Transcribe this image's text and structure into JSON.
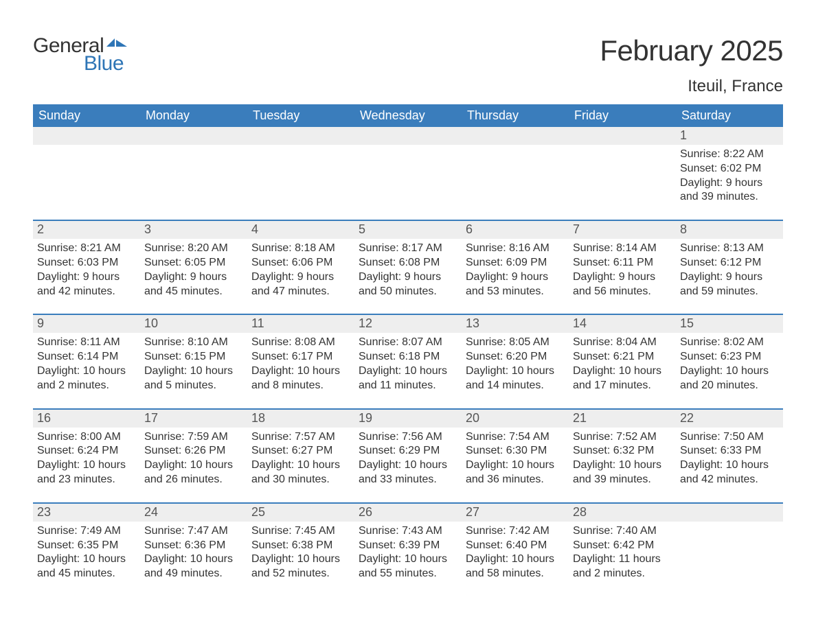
{
  "logo": {
    "general": "General",
    "blue": "Blue",
    "shape_color": "#2e75b6"
  },
  "title": "February 2025",
  "location": "Iteuil, France",
  "colors": {
    "header_bg": "#3a7dbc",
    "header_text": "#ffffff",
    "day_bar_bg": "#eeeeee",
    "week_border": "#3a7dbc",
    "text": "#333333",
    "logo_blue": "#2e75b6",
    "background": "#ffffff"
  },
  "typography": {
    "title_fontsize": 42,
    "location_fontsize": 24,
    "header_fontsize": 18,
    "daynum_fontsize": 18,
    "body_fontsize": 16,
    "logo_fontsize": 30
  },
  "layout": {
    "columns": 7,
    "rows": 5,
    "week_start": "Sunday"
  },
  "weekdays": [
    "Sunday",
    "Monday",
    "Tuesday",
    "Wednesday",
    "Thursday",
    "Friday",
    "Saturday"
  ],
  "weeks": [
    [
      {
        "day": "",
        "sunrise": "",
        "sunset": "",
        "daylight": ""
      },
      {
        "day": "",
        "sunrise": "",
        "sunset": "",
        "daylight": ""
      },
      {
        "day": "",
        "sunrise": "",
        "sunset": "",
        "daylight": ""
      },
      {
        "day": "",
        "sunrise": "",
        "sunset": "",
        "daylight": ""
      },
      {
        "day": "",
        "sunrise": "",
        "sunset": "",
        "daylight": ""
      },
      {
        "day": "",
        "sunrise": "",
        "sunset": "",
        "daylight": ""
      },
      {
        "day": "1",
        "sunrise": "Sunrise: 8:22 AM",
        "sunset": "Sunset: 6:02 PM",
        "daylight": "Daylight: 9 hours and 39 minutes."
      }
    ],
    [
      {
        "day": "2",
        "sunrise": "Sunrise: 8:21 AM",
        "sunset": "Sunset: 6:03 PM",
        "daylight": "Daylight: 9 hours and 42 minutes."
      },
      {
        "day": "3",
        "sunrise": "Sunrise: 8:20 AM",
        "sunset": "Sunset: 6:05 PM",
        "daylight": "Daylight: 9 hours and 45 minutes."
      },
      {
        "day": "4",
        "sunrise": "Sunrise: 8:18 AM",
        "sunset": "Sunset: 6:06 PM",
        "daylight": "Daylight: 9 hours and 47 minutes."
      },
      {
        "day": "5",
        "sunrise": "Sunrise: 8:17 AM",
        "sunset": "Sunset: 6:08 PM",
        "daylight": "Daylight: 9 hours and 50 minutes."
      },
      {
        "day": "6",
        "sunrise": "Sunrise: 8:16 AM",
        "sunset": "Sunset: 6:09 PM",
        "daylight": "Daylight: 9 hours and 53 minutes."
      },
      {
        "day": "7",
        "sunrise": "Sunrise: 8:14 AM",
        "sunset": "Sunset: 6:11 PM",
        "daylight": "Daylight: 9 hours and 56 minutes."
      },
      {
        "day": "8",
        "sunrise": "Sunrise: 8:13 AM",
        "sunset": "Sunset: 6:12 PM",
        "daylight": "Daylight: 9 hours and 59 minutes."
      }
    ],
    [
      {
        "day": "9",
        "sunrise": "Sunrise: 8:11 AM",
        "sunset": "Sunset: 6:14 PM",
        "daylight": "Daylight: 10 hours and 2 minutes."
      },
      {
        "day": "10",
        "sunrise": "Sunrise: 8:10 AM",
        "sunset": "Sunset: 6:15 PM",
        "daylight": "Daylight: 10 hours and 5 minutes."
      },
      {
        "day": "11",
        "sunrise": "Sunrise: 8:08 AM",
        "sunset": "Sunset: 6:17 PM",
        "daylight": "Daylight: 10 hours and 8 minutes."
      },
      {
        "day": "12",
        "sunrise": "Sunrise: 8:07 AM",
        "sunset": "Sunset: 6:18 PM",
        "daylight": "Daylight: 10 hours and 11 minutes."
      },
      {
        "day": "13",
        "sunrise": "Sunrise: 8:05 AM",
        "sunset": "Sunset: 6:20 PM",
        "daylight": "Daylight: 10 hours and 14 minutes."
      },
      {
        "day": "14",
        "sunrise": "Sunrise: 8:04 AM",
        "sunset": "Sunset: 6:21 PM",
        "daylight": "Daylight: 10 hours and 17 minutes."
      },
      {
        "day": "15",
        "sunrise": "Sunrise: 8:02 AM",
        "sunset": "Sunset: 6:23 PM",
        "daylight": "Daylight: 10 hours and 20 minutes."
      }
    ],
    [
      {
        "day": "16",
        "sunrise": "Sunrise: 8:00 AM",
        "sunset": "Sunset: 6:24 PM",
        "daylight": "Daylight: 10 hours and 23 minutes."
      },
      {
        "day": "17",
        "sunrise": "Sunrise: 7:59 AM",
        "sunset": "Sunset: 6:26 PM",
        "daylight": "Daylight: 10 hours and 26 minutes."
      },
      {
        "day": "18",
        "sunrise": "Sunrise: 7:57 AM",
        "sunset": "Sunset: 6:27 PM",
        "daylight": "Daylight: 10 hours and 30 minutes."
      },
      {
        "day": "19",
        "sunrise": "Sunrise: 7:56 AM",
        "sunset": "Sunset: 6:29 PM",
        "daylight": "Daylight: 10 hours and 33 minutes."
      },
      {
        "day": "20",
        "sunrise": "Sunrise: 7:54 AM",
        "sunset": "Sunset: 6:30 PM",
        "daylight": "Daylight: 10 hours and 36 minutes."
      },
      {
        "day": "21",
        "sunrise": "Sunrise: 7:52 AM",
        "sunset": "Sunset: 6:32 PM",
        "daylight": "Daylight: 10 hours and 39 minutes."
      },
      {
        "day": "22",
        "sunrise": "Sunrise: 7:50 AM",
        "sunset": "Sunset: 6:33 PM",
        "daylight": "Daylight: 10 hours and 42 minutes."
      }
    ],
    [
      {
        "day": "23",
        "sunrise": "Sunrise: 7:49 AM",
        "sunset": "Sunset: 6:35 PM",
        "daylight": "Daylight: 10 hours and 45 minutes."
      },
      {
        "day": "24",
        "sunrise": "Sunrise: 7:47 AM",
        "sunset": "Sunset: 6:36 PM",
        "daylight": "Daylight: 10 hours and 49 minutes."
      },
      {
        "day": "25",
        "sunrise": "Sunrise: 7:45 AM",
        "sunset": "Sunset: 6:38 PM",
        "daylight": "Daylight: 10 hours and 52 minutes."
      },
      {
        "day": "26",
        "sunrise": "Sunrise: 7:43 AM",
        "sunset": "Sunset: 6:39 PM",
        "daylight": "Daylight: 10 hours and 55 minutes."
      },
      {
        "day": "27",
        "sunrise": "Sunrise: 7:42 AM",
        "sunset": "Sunset: 6:40 PM",
        "daylight": "Daylight: 10 hours and 58 minutes."
      },
      {
        "day": "28",
        "sunrise": "Sunrise: 7:40 AM",
        "sunset": "Sunset: 6:42 PM",
        "daylight": "Daylight: 11 hours and 2 minutes."
      },
      {
        "day": "",
        "sunrise": "",
        "sunset": "",
        "daylight": ""
      }
    ]
  ]
}
